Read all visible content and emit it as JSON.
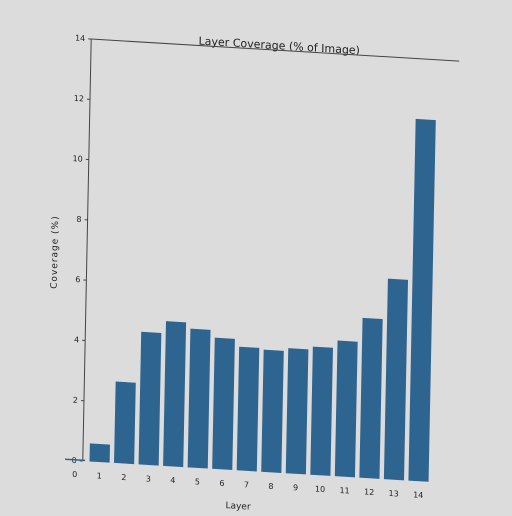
{
  "chart_data": {
    "type": "bar",
    "title": "Layer Coverage (% of Image)",
    "x_label": "Layer",
    "y_label": "Coverage (%)",
    "categories": [
      "0",
      "1",
      "2",
      "3",
      "4",
      "5",
      "6",
      "7",
      "8",
      "9",
      "10",
      "11",
      "12",
      "13",
      "14"
    ],
    "values": [
      0.05,
      0.6,
      2.7,
      4.4,
      4.8,
      4.6,
      4.35,
      4.1,
      4.05,
      4.15,
      4.25,
      4.5,
      5.3,
      6.65,
      12.0
    ],
    "color": "#2e6490",
    "ylim": [
      0,
      14
    ],
    "yticks": [
      0,
      2,
      4,
      6,
      8,
      10,
      12,
      14
    ],
    "grid": false
  }
}
